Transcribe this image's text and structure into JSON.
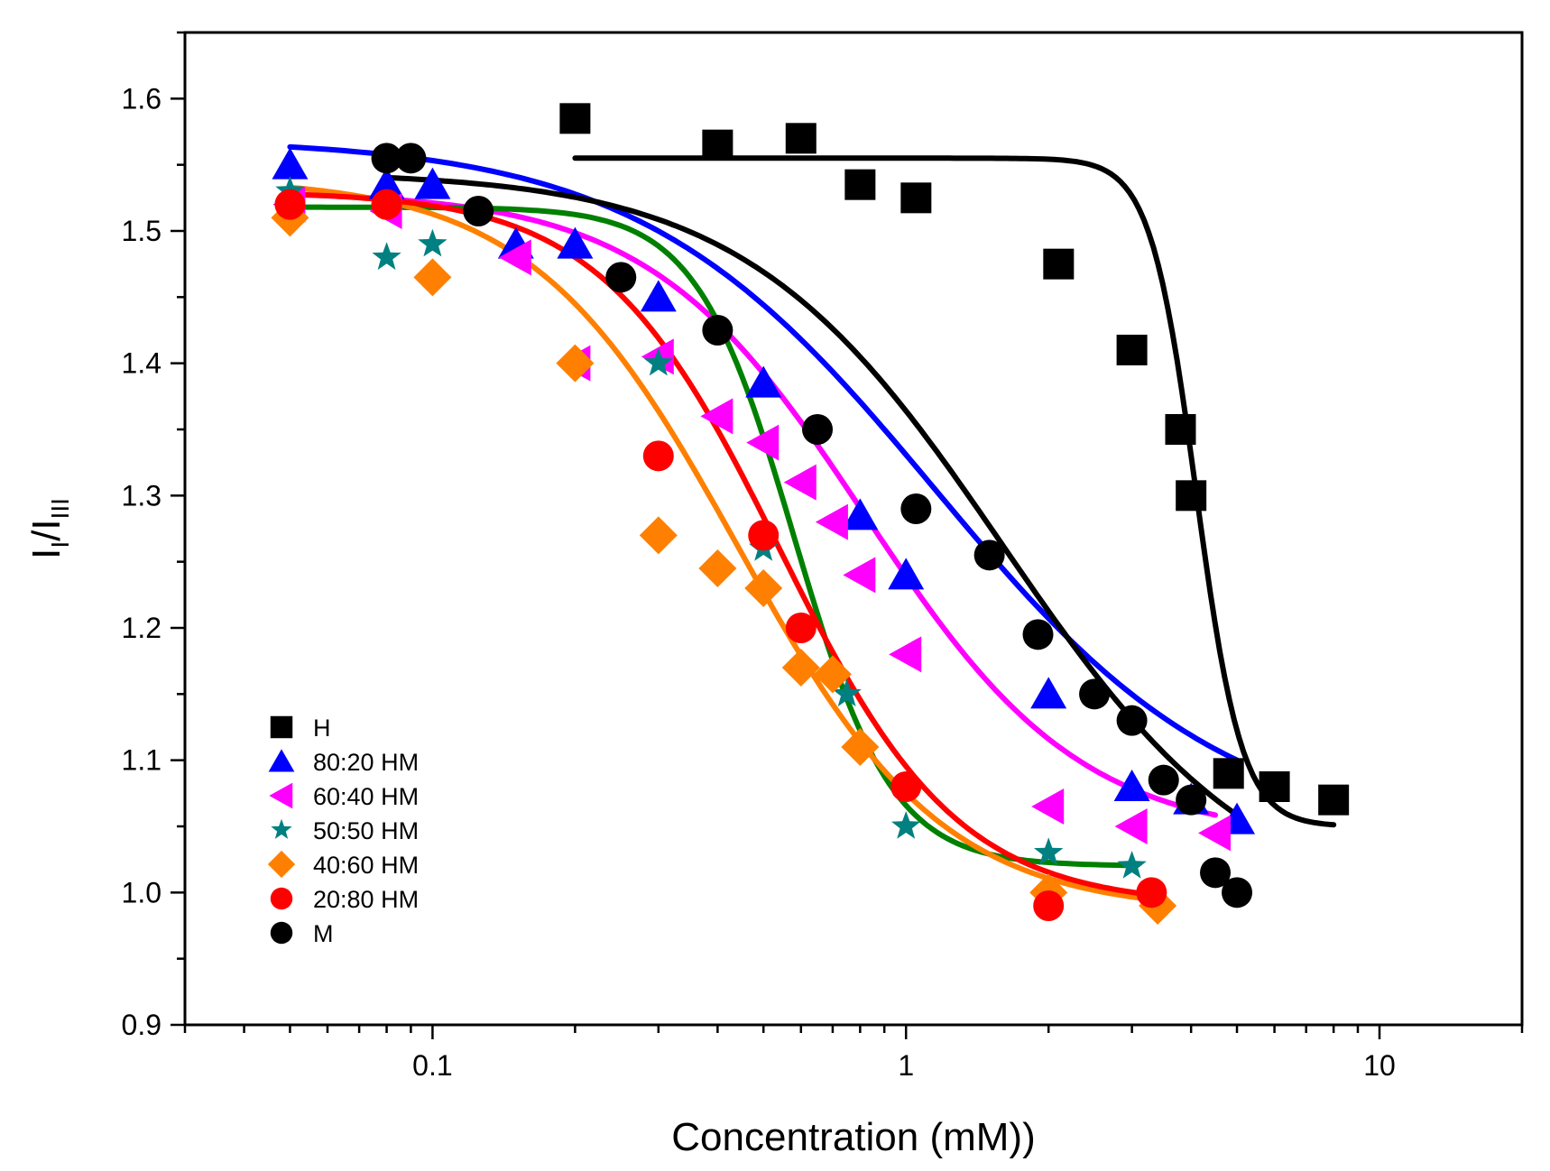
{
  "chart_data": {
    "type": "scatter",
    "title": "",
    "xlabel": "Concentration (mM))",
    "ylabel": {
      "main": "I",
      "sub1": "I",
      "slash": "/",
      "main2": "I",
      "sub2": "III"
    },
    "xscale": "log",
    "xlim": [
      0.03,
      20
    ],
    "ylim": [
      0.9,
      1.65
    ],
    "xticks": [
      {
        "value": 0.1,
        "label": "0.1"
      },
      {
        "value": 1,
        "label": "1"
      },
      {
        "value": 10,
        "label": "10"
      }
    ],
    "yticks": [
      {
        "value": 0.9,
        "label": "0.9"
      },
      {
        "value": 1.0,
        "label": "1.0"
      },
      {
        "value": 1.1,
        "label": "1.1"
      },
      {
        "value": 1.2,
        "label": "1.2"
      },
      {
        "value": 1.3,
        "label": "1.3"
      },
      {
        "value": 1.4,
        "label": "1.4"
      },
      {
        "value": 1.5,
        "label": "1.5"
      },
      {
        "value": 1.6,
        "label": "1.6"
      }
    ],
    "grid": false,
    "legend_position": "bottom-left",
    "series": [
      {
        "name": "H",
        "color": "#000000",
        "marker": "square",
        "x": [
          0.2,
          0.4,
          0.6,
          0.8,
          1.05,
          2.1,
          3.0,
          3.8,
          4.0,
          4.8,
          6.0,
          8.0
        ],
        "y": [
          1.585,
          1.565,
          1.57,
          1.535,
          1.525,
          1.475,
          1.41,
          1.35,
          1.3,
          1.09,
          1.08,
          1.07
        ],
        "fit": {
          "top": 1.555,
          "bottom": 1.05,
          "x0": 4.1,
          "p": 9,
          "xmin": 0.2,
          "xmax": 8.0
        }
      },
      {
        "name": "80:20 HM",
        "color": "#0000ff",
        "marker": "triangle-up",
        "x": [
          0.05,
          0.08,
          0.1,
          0.15,
          0.2,
          0.3,
          0.5,
          0.8,
          1.0,
          2.0,
          3.0,
          4.0,
          5.0
        ],
        "y": [
          1.55,
          1.535,
          1.535,
          1.49,
          1.49,
          1.45,
          1.385,
          1.285,
          1.24,
          1.15,
          1.08,
          1.07,
          1.055
        ],
        "fit": {
          "top": 1.57,
          "bottom": 1.04,
          "x0": 1.15,
          "p": 1.4,
          "xmin": 0.05,
          "xmax": 5.0
        }
      },
      {
        "name": "60:40 HM",
        "color": "#ff00ff",
        "marker": "triangle-left",
        "x": [
          0.05,
          0.08,
          0.15,
          0.2,
          0.3,
          0.4,
          0.5,
          0.6,
          0.7,
          0.8,
          1.0,
          2.0,
          3.0,
          4.5
        ],
        "y": [
          1.52,
          1.515,
          1.48,
          1.4,
          1.405,
          1.36,
          1.34,
          1.31,
          1.28,
          1.24,
          1.18,
          1.065,
          1.05,
          1.045
        ],
        "fit": {
          "top": 1.53,
          "bottom": 1.04,
          "x0": 0.82,
          "p": 1.9,
          "xmin": 0.05,
          "xmax": 4.5
        }
      },
      {
        "name": "50:50 HM",
        "color": "#008080",
        "marker": "star",
        "x": [
          0.05,
          0.08,
          0.1,
          0.3,
          0.5,
          0.75,
          1.0,
          2.0,
          3.0
        ],
        "y": [
          1.53,
          1.48,
          1.49,
          1.4,
          1.26,
          1.15,
          1.05,
          1.03,
          1.02
        ],
        "fit": {
          "top": 1.518,
          "bottom": 1.02,
          "x0": 0.58,
          "p": 4.2,
          "xmin": 0.05,
          "xmax": 3.0
        }
      },
      {
        "name": "40:60 HM",
        "color": "#ff8000",
        "marker": "diamond",
        "x": [
          0.05,
          0.1,
          0.2,
          0.3,
          0.4,
          0.5,
          0.6,
          0.7,
          0.8,
          2.0,
          3.4
        ],
        "y": [
          1.51,
          1.465,
          1.4,
          1.27,
          1.245,
          1.23,
          1.17,
          1.165,
          1.11,
          1.0,
          0.99
        ],
        "fit": {
          "top": 1.54,
          "bottom": 0.985,
          "x0": 0.44,
          "p": 2.0,
          "xmin": 0.05,
          "xmax": 3.4
        }
      },
      {
        "name": "20:80 HM",
        "color": "#ff0000",
        "marker": "circle",
        "x": [
          0.05,
          0.08,
          0.3,
          0.5,
          0.6,
          1.0,
          2.0,
          3.3
        ],
        "y": [
          1.52,
          1.52,
          1.33,
          1.27,
          1.2,
          1.08,
          0.99,
          1.0
        ],
        "fit": {
          "top": 1.53,
          "bottom": 0.99,
          "x0": 0.54,
          "p": 2.3,
          "xmin": 0.05,
          "xmax": 3.3
        }
      },
      {
        "name": "M",
        "color": "#000000",
        "marker": "circle",
        "x": [
          0.08,
          0.09,
          0.125,
          0.25,
          0.4,
          0.65,
          1.05,
          1.5,
          1.9,
          2.5,
          3.0,
          3.5,
          4.0,
          4.5,
          5.0
        ],
        "y": [
          1.555,
          1.555,
          1.515,
          1.465,
          1.425,
          1.35,
          1.29,
          1.255,
          1.195,
          1.15,
          1.13,
          1.085,
          1.07,
          1.015,
          1.0
        ],
        "fit": {
          "top": 1.545,
          "bottom": 0.98,
          "x0": 1.6,
          "p": 1.6,
          "xmin": 0.08,
          "xmax": 4.9
        }
      }
    ]
  }
}
